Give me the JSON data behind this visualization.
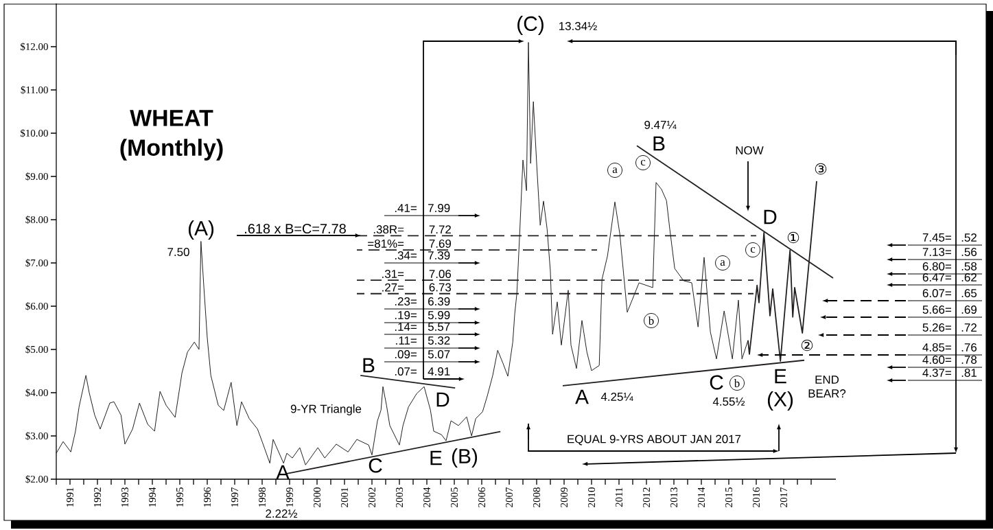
{
  "chart_data": {
    "type": "line",
    "title": "WHEAT",
    "subtitle": "(Monthly)",
    "xlim": [
      1991,
      2019.4
    ],
    "ylim": [
      2,
      13
    ],
    "xticks": [
      {
        "value": 1991,
        "label": null
      },
      {
        "value": 1991.5,
        "label": "1991"
      },
      {
        "value": 1992,
        "label": null
      },
      {
        "value": 1992.5,
        "label": "1992"
      },
      {
        "value": 1993,
        "label": null
      },
      {
        "value": 1993.5,
        "label": "1993"
      },
      {
        "value": 1994,
        "label": null
      },
      {
        "value": 1994.5,
        "label": "1994"
      },
      {
        "value": 1995,
        "label": null
      },
      {
        "value": 1995.5,
        "label": "1995"
      },
      {
        "value": 1996,
        "label": null
      },
      {
        "value": 1996.5,
        "label": "1996"
      },
      {
        "value": 1997,
        "label": null
      },
      {
        "value": 1997.5,
        "label": "1997"
      },
      {
        "value": 1998,
        "label": null
      },
      {
        "value": 1998.5,
        "label": "1998"
      },
      {
        "value": 1999,
        "label": null
      },
      {
        "value": 1999.5,
        "label": "1999"
      },
      {
        "value": 2000,
        "label": null
      },
      {
        "value": 2000.5,
        "label": "2000"
      },
      {
        "value": 2001,
        "label": null
      },
      {
        "value": 2001.5,
        "label": "2001"
      },
      {
        "value": 2002,
        "label": null
      },
      {
        "value": 2002.5,
        "label": "2002"
      },
      {
        "value": 2003,
        "label": null
      },
      {
        "value": 2003.5,
        "label": "2003"
      },
      {
        "value": 2004,
        "label": null
      },
      {
        "value": 2004.5,
        "label": "2004"
      },
      {
        "value": 2005,
        "label": null
      },
      {
        "value": 2005.5,
        "label": "2005"
      },
      {
        "value": 2006,
        "label": null
      },
      {
        "value": 2006.5,
        "label": "2006"
      },
      {
        "value": 2007,
        "label": null
      },
      {
        "value": 2007.5,
        "label": "2007"
      },
      {
        "value": 2008,
        "label": null
      },
      {
        "value": 2008.5,
        "label": "2008"
      },
      {
        "value": 2009,
        "label": null
      },
      {
        "value": 2009.5,
        "label": "2009"
      },
      {
        "value": 2010,
        "label": null
      },
      {
        "value": 2010.5,
        "label": "2010"
      },
      {
        "value": 2011,
        "label": null
      },
      {
        "value": 2011.5,
        "label": "2011"
      },
      {
        "value": 2012,
        "label": null
      },
      {
        "value": 2012.5,
        "label": "2012"
      },
      {
        "value": 2013,
        "label": null
      },
      {
        "value": 2013.5,
        "label": "2013"
      },
      {
        "value": 2014,
        "label": null
      },
      {
        "value": 2014.5,
        "label": "2014"
      },
      {
        "value": 2015,
        "label": null
      },
      {
        "value": 2015.5,
        "label": "2015"
      },
      {
        "value": 2016,
        "label": null
      },
      {
        "value": 2016.5,
        "label": "2016"
      },
      {
        "value": 2017,
        "label": null
      },
      {
        "value": 2017.5,
        "label": "2017"
      },
      {
        "value": 2018,
        "label": null
      },
      {
        "value": 2018.5,
        "label": null
      }
    ],
    "yticks": [
      {
        "value": 2,
        "label": "$2.00"
      },
      {
        "value": 3,
        "label": "$3.00"
      },
      {
        "value": 4,
        "label": "$4.00"
      },
      {
        "value": 5,
        "label": "$5.00"
      },
      {
        "value": 6,
        "label": "$6.00"
      },
      {
        "value": 7,
        "label": "$7.00"
      },
      {
        "value": 8,
        "label": "$8.00"
      },
      {
        "value": 9,
        "label": "$9.00"
      },
      {
        "value": 10,
        "label": "$10.00"
      },
      {
        "value": 11,
        "label": "$11.00"
      },
      {
        "value": 12,
        "label": "$12.00"
      }
    ],
    "series": [
      {
        "color": "#231f20",
        "x": [
          1991.0,
          1991.25,
          1991.53,
          1991.7,
          1991.83,
          1992.08,
          1992.2,
          1992.4,
          1992.6,
          1992.95,
          1993.1,
          1993.36,
          1993.5,
          1993.78,
          1994.03,
          1994.33,
          1994.58,
          1994.78,
          1995.0,
          1995.33,
          1995.58,
          1995.78,
          1996.03,
          1996.2,
          1996.27,
          1996.38,
          1996.5,
          1996.63,
          1996.9,
          1997.1,
          1997.37,
          1997.58,
          1997.75,
          1998.03,
          1998.33,
          1998.5,
          1998.78,
          1998.9,
          1999.28,
          1999.4,
          1999.6,
          1999.87,
          2000.08,
          2000.53,
          2000.78,
          2001.2,
          2001.63,
          2001.95,
          2002.38,
          2002.5,
          2002.7,
          2002.83,
          2002.9,
          2003.03,
          2003.15,
          2003.5,
          2003.63,
          2003.83,
          2004.13,
          2004.4,
          2004.63,
          2004.75,
          2005.03,
          2005.2,
          2005.38,
          2005.65,
          2005.95,
          2006.13,
          2006.28,
          2006.53,
          2006.7,
          2006.9,
          2007.08,
          2007.28,
          2007.45,
          2007.63,
          2007.7,
          2007.78,
          2007.88,
          2008.0,
          2008.13,
          2008.2,
          2008.28,
          2008.38,
          2008.5,
          2008.63,
          2008.75,
          2008.88,
          2009.0,
          2009.08,
          2009.25,
          2009.4,
          2009.65,
          2009.75,
          2009.95,
          2010.15,
          2010.33,
          2010.5,
          2010.78,
          2010.88,
          2011.08,
          2011.35,
          2011.53,
          2011.8,
          2012.23,
          2012.73,
          2012.85,
          2013.05,
          2013.23,
          2013.35,
          2013.53,
          2013.85,
          2014.15,
          2014.38,
          2014.6,
          2014.83,
          2015.05,
          2015.33,
          2015.63,
          2015.85,
          2015.98,
          2016.2
        ],
        "values": [
          2.6,
          2.87,
          2.63,
          3.11,
          3.67,
          4.4,
          4.0,
          3.48,
          3.16,
          3.76,
          3.79,
          3.48,
          2.81,
          3.16,
          3.76,
          3.27,
          3.11,
          4.03,
          3.71,
          3.43,
          4.46,
          4.94,
          5.17,
          5.0,
          7.5,
          6.41,
          5.27,
          4.4,
          3.71,
          3.59,
          4.24,
          3.24,
          3.79,
          3.4,
          3.16,
          2.87,
          2.37,
          2.92,
          2.37,
          2.6,
          2.49,
          2.73,
          2.33,
          2.73,
          2.49,
          2.81,
          2.63,
          2.92,
          2.79,
          2.56,
          3.35,
          3.6,
          4.14,
          3.71,
          3.24,
          2.79,
          3.24,
          3.67,
          3.98,
          4.14,
          3.6,
          3.11,
          3.03,
          2.89,
          3.35,
          3.24,
          3.44,
          3.0,
          3.4,
          3.56,
          3.92,
          4.4,
          4.98,
          4.67,
          4.38,
          5.17,
          5.81,
          6.3,
          7.65,
          9.38,
          8.67,
          12.1,
          9.3,
          10.73,
          9.3,
          7.87,
          8.43,
          7.79,
          6.81,
          5.35,
          6.1,
          5.1,
          6.37,
          5.1,
          4.56,
          5.67,
          4.94,
          4.51,
          4.63,
          6.62,
          7.16,
          8.41,
          7.67,
          5.86,
          6.54,
          6.43,
          8.86,
          8.7,
          8.44,
          7.78,
          6.87,
          6.59,
          6.54,
          5.52,
          7.13,
          5.4,
          4.78,
          5.89,
          4.78,
          6.14,
          4.78,
          5.21
        ]
      },
      {
        "color": "#231f20",
        "x": [
          2016.2,
          2016.25,
          2016.53,
          2016.6,
          2016.78,
          2017.0,
          2017.1,
          2017.38,
          2017.73,
          2017.83,
          2017.9,
          2018.18,
          2018.7
        ],
        "values": [
          5.21,
          4.89,
          6.48,
          6.08,
          7.7,
          5.78,
          6.4,
          4.73,
          7.29,
          5.75,
          6.43,
          5.38,
          8.89
        ]
      },
      {
        "color": "#231f20",
        "x": [
          1999.4,
          2007.18
        ],
        "values": [
          2.13,
          3.1
        ]
      },
      {
        "color": "#231f20",
        "x": [
          2002.08,
          2005.53
        ],
        "values": [
          4.4,
          4.11
        ]
      },
      {
        "color": "#231f20",
        "x": [
          2009.45,
          2018.25
        ],
        "values": [
          4.16,
          4.75
        ]
      },
      {
        "color": "#231f20",
        "x": [
          2012.15,
          2019.3
        ],
        "values": [
          9.71,
          6.65
        ]
      },
      {
        "color": "#231f20",
        "line_style": "dashed",
        "x": [
          2001.95,
          2016.5
        ],
        "values": [
          7.63,
          7.63
        ]
      },
      {
        "color": "#231f20",
        "line_style": "dashed",
        "x": [
          2001.95,
          2010.7
        ],
        "values": [
          7.3,
          7.3
        ]
      },
      {
        "color": "#231f20",
        "line_style": "dashed",
        "x": [
          2001.95,
          2016.4
        ],
        "values": [
          6.6,
          6.6
        ]
      },
      {
        "color": "#231f20",
        "line_style": "dashed",
        "x": [
          2001.95,
          2016.4
        ],
        "values": [
          6.29,
          6.29
        ]
      }
    ],
    "annotations": [
      {
        "text": ".38R=",
        "x": 2003.78,
        "y": 7.63
      },
      {
        "text": "7.72",
        "x": 2005.5,
        "y": 7.63
      },
      {
        "text": "=81%=",
        "x": 2003.78,
        "y": 7.3
      },
      {
        "text": "7.69",
        "x": 2005.5,
        "y": 7.3
      },
      {
        "text": ".31=",
        "x": 2003.78,
        "y": 6.6
      },
      {
        "text": "7.06",
        "x": 2005.5,
        "y": 6.6
      },
      {
        "text": ".27=",
        "x": 2003.78,
        "y": 6.29
      },
      {
        "text": "6.73",
        "x": 2005.5,
        "y": 6.29
      },
      {
        "text": ".618 x B=C=7.78",
        "x": 2002.15,
        "y": 7.63
      },
      "(A)",
      "7.50",
      "(C)",
      "13.34½",
      "B",
      "D",
      "9-YR Triangle",
      "C",
      "E",
      "(B)",
      "A",
      "A",
      "4.25¼",
      "9.47¼",
      "B",
      "a",
      "c",
      "b",
      "NOW",
      "D",
      "c",
      "a",
      "①",
      "③",
      "②",
      "C",
      "b",
      "4.55½",
      "E",
      "(X)",
      "END",
      "BEAR?",
      "EQUAL 9-YRS ABOUT JAN 2017",
      ".41=",
      "7.99",
      ".34=",
      "7.39",
      ".23=",
      "6.39",
      ".19=",
      "5.99",
      ".14=",
      "5.57",
      ".11=",
      "5.32",
      ".09=",
      "5.07",
      ".07=",
      "4.91",
      "7.45=",
      ".52",
      "7.13=",
      ".56",
      "6.80=",
      ".58",
      "6.47=",
      ".62",
      "6.07=",
      ".65",
      "5.66=",
      ".69",
      "5.26=",
      ".72",
      "4.85=",
      ".76",
      "4.60=",
      ".78",
      "4.37=",
      ".81",
      "2.22½"
    ]
  }
}
